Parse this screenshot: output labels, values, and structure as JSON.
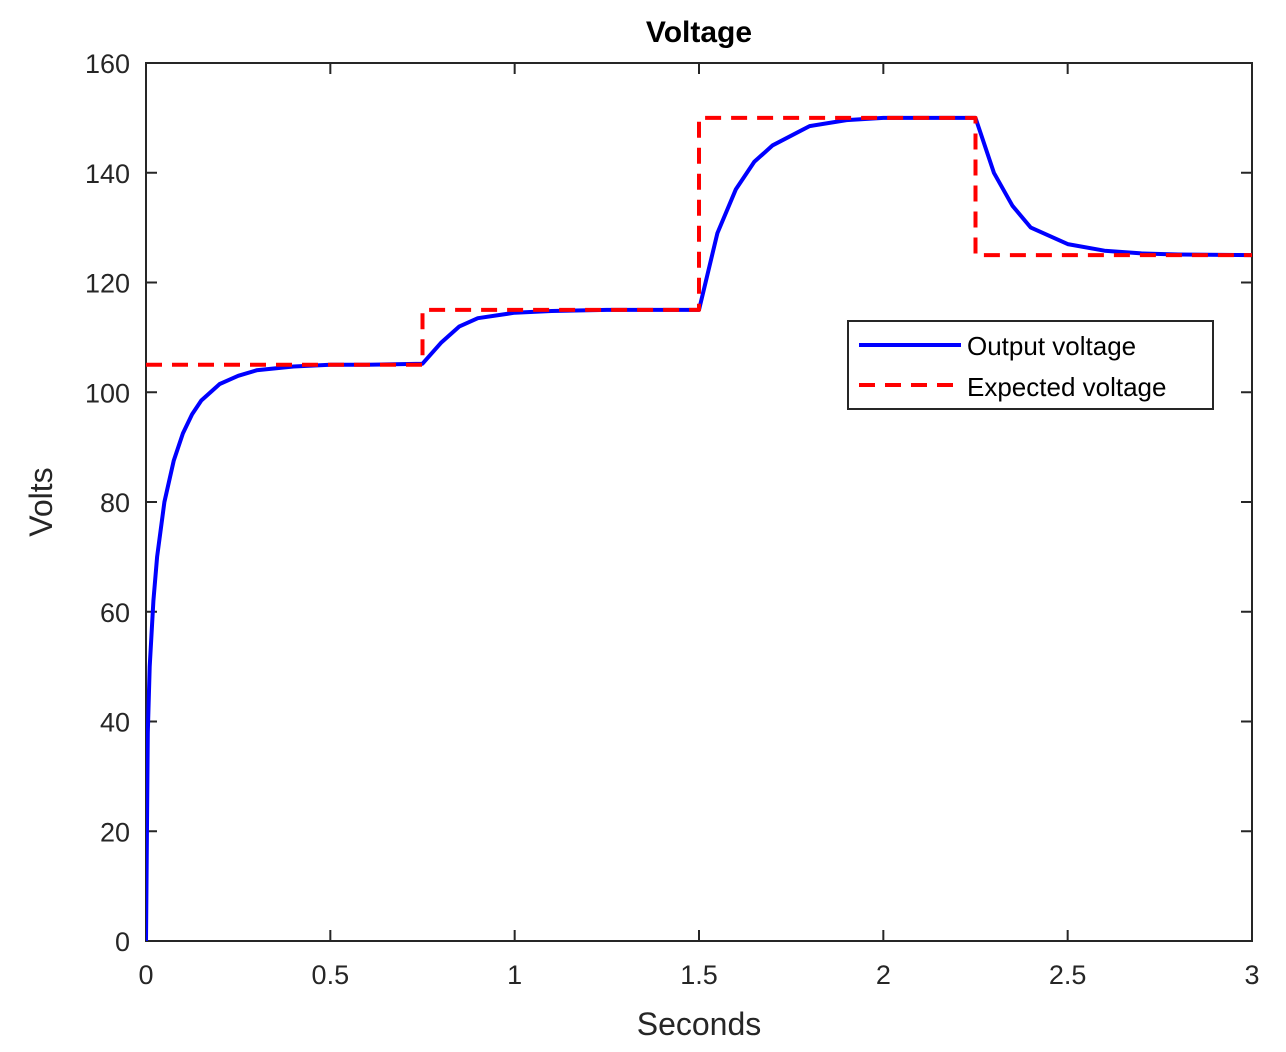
{
  "chart_data": {
    "type": "line",
    "title": "Voltage",
    "xlabel": "Seconds",
    "ylabel": "Volts",
    "xlim": [
      0,
      3
    ],
    "ylim": [
      0,
      160
    ],
    "x_ticks": [
      0,
      0.5,
      1,
      1.5,
      2,
      2.5,
      3
    ],
    "x_tick_labels": [
      "0",
      "0.5",
      "1",
      "1.5",
      "2",
      "2.5",
      "3"
    ],
    "y_ticks": [
      0,
      20,
      40,
      60,
      80,
      100,
      120,
      140,
      160
    ],
    "y_tick_labels": [
      "0",
      "20",
      "40",
      "60",
      "80",
      "100",
      "120",
      "140",
      "160"
    ],
    "grid": false,
    "legend_position": "right, upper-middle",
    "series": [
      {
        "name": "Output voltage",
        "color": "#0000ff",
        "style": "solid",
        "x": [
          0,
          0.005,
          0.01,
          0.02,
          0.03,
          0.05,
          0.075,
          0.1,
          0.125,
          0.15,
          0.2,
          0.25,
          0.3,
          0.4,
          0.5,
          0.6,
          0.75,
          0.8,
          0.85,
          0.9,
          1.0,
          1.1,
          1.25,
          1.5,
          1.55,
          1.6,
          1.65,
          1.7,
          1.8,
          1.9,
          2.0,
          2.1,
          2.25,
          2.3,
          2.35,
          2.4,
          2.5,
          2.6,
          2.7,
          2.8,
          3.0
        ],
        "y": [
          0,
          38,
          50,
          62,
          70,
          80,
          87.5,
          92.5,
          96,
          98.5,
          101.5,
          103,
          104,
          104.7,
          105,
          105,
          105.2,
          109,
          112,
          113.5,
          114.5,
          114.8,
          115,
          115,
          129,
          137,
          142,
          145,
          148.5,
          149.6,
          150,
          150,
          150,
          140,
          134,
          130,
          127,
          125.8,
          125.3,
          125.1,
          125
        ]
      },
      {
        "name": "Expected voltage",
        "color": "#ff0000",
        "style": "dashed",
        "x": [
          0,
          0.75,
          0.75,
          1.5,
          1.5,
          2.25,
          2.25,
          3.0
        ],
        "y": [
          105,
          105,
          115,
          115,
          150,
          150,
          125,
          125
        ]
      }
    ]
  }
}
